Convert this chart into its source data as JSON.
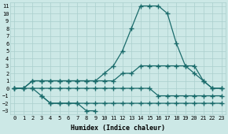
{
  "xlabel": "Humidex (Indice chaleur)",
  "xlim": [
    -0.5,
    23.5
  ],
  "ylim": [
    -3.5,
    11.5
  ],
  "xticks": [
    0,
    1,
    2,
    3,
    4,
    5,
    6,
    7,
    8,
    9,
    10,
    11,
    12,
    13,
    14,
    15,
    16,
    17,
    18,
    19,
    20,
    21,
    22,
    23
  ],
  "yticks": [
    -3,
    -2,
    -1,
    0,
    1,
    2,
    3,
    4,
    5,
    6,
    7,
    8,
    9,
    10,
    11
  ],
  "bg_color": "#cce8e6",
  "grid_color": "#aacfcd",
  "line_color": "#1a6b6b",
  "line1_x": [
    0,
    1,
    2,
    3,
    4,
    5,
    6,
    7,
    8,
    9,
    10,
    11,
    12,
    13,
    14,
    15,
    16,
    17,
    18,
    19,
    20,
    21,
    22,
    23
  ],
  "line1_y": [
    0,
    0,
    1,
    1,
    1,
    1,
    1,
    1,
    1,
    1,
    2,
    3,
    5,
    8,
    11,
    11,
    11,
    10,
    6,
    3,
    3,
    1,
    0,
    0
  ],
  "line2_x": [
    0,
    1,
    2,
    3,
    4,
    5,
    6,
    7,
    8,
    9,
    10,
    11,
    12,
    13,
    14,
    15,
    16,
    17,
    18,
    19,
    20,
    21,
    22,
    23
  ],
  "line2_y": [
    0,
    0,
    1,
    1,
    1,
    1,
    1,
    1,
    1,
    1,
    1,
    1,
    2,
    2,
    3,
    3,
    3,
    3,
    3,
    3,
    2,
    1,
    0,
    0
  ],
  "line3_x": [
    0,
    1,
    2,
    3,
    4,
    5,
    6,
    7,
    8,
    9,
    10,
    11,
    12,
    13,
    14,
    15,
    16,
    17,
    18,
    19,
    20,
    21,
    22,
    23
  ],
  "line3_y": [
    0,
    0,
    0,
    0,
    0,
    0,
    0,
    0,
    0,
    0,
    0,
    0,
    0,
    0,
    0,
    0,
    -1,
    -1,
    -1,
    -1,
    -1,
    -1,
    -1,
    -1
  ],
  "line4_x": [
    2,
    3,
    4,
    5,
    6,
    7,
    8,
    9,
    10,
    11,
    12,
    13,
    14,
    15,
    16,
    17,
    18,
    19,
    20,
    21,
    22,
    23
  ],
  "line4_y": [
    0,
    -1,
    -2,
    -2,
    -2,
    -2,
    -2,
    -2,
    -2,
    -2,
    -2,
    -2,
    -2,
    -2,
    -2,
    -2,
    -2,
    -2,
    -2,
    -2,
    -2,
    -2
  ],
  "line5_x": [
    3,
    4,
    5,
    6,
    7,
    8,
    9
  ],
  "line5_y": [
    -1,
    -2,
    -2,
    -2,
    -2,
    -3,
    -3
  ],
  "marker": "+",
  "markersize": 4,
  "linewidth": 0.9,
  "axis_fontsize": 6,
  "tick_fontsize": 5
}
